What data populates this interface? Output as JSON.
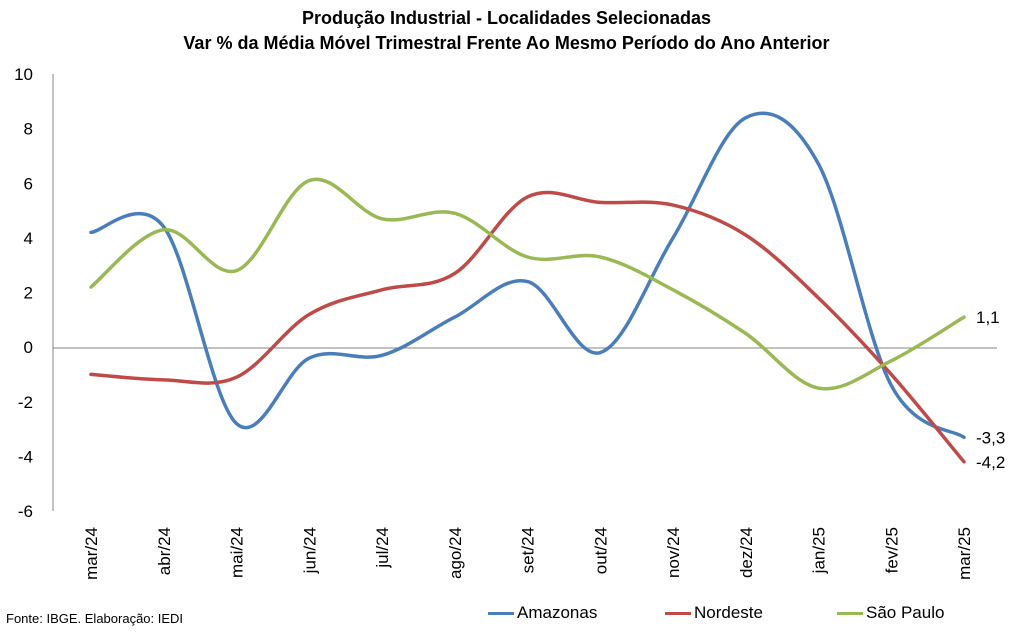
{
  "chart_data": {
    "type": "line",
    "title": "Produção Industrial - Localidades Selecionadas",
    "subtitle": "Var % da Média Móvel Trimestral Frente Ao Mesmo Período do Ano Anterior",
    "categories": [
      "mar/24",
      "abr/24",
      "mai/24",
      "jun/24",
      "jul/24",
      "ago/24",
      "set/24",
      "out/24",
      "nov/24",
      "dez/24",
      "jan/25",
      "fev/25",
      "mar/25"
    ],
    "ylim": [
      -6,
      10
    ],
    "yticks": [
      "10",
      "8",
      "6",
      "4",
      "2",
      "0",
      "-2",
      "-4",
      "-6"
    ],
    "ytick_values": [
      10,
      8,
      6,
      4,
      2,
      0,
      -2,
      -4,
      -6
    ],
    "series": [
      {
        "name": "Amazonas",
        "color": "#4a7ebb",
        "values": [
          4.2,
          4.4,
          -2.8,
          -0.4,
          -0.3,
          1.1,
          2.4,
          -0.2,
          4.0,
          8.4,
          6.7,
          -1.4,
          -3.3
        ],
        "end_label": "-3,3"
      },
      {
        "name": "Nordeste",
        "color": "#be4b48",
        "values": [
          -1.0,
          -1.2,
          -1.1,
          1.2,
          2.1,
          2.7,
          5.5,
          5.3,
          5.2,
          4.1,
          1.8,
          -1.0,
          -4.2
        ],
        "end_label": "-4,2"
      },
      {
        "name": "São Paulo",
        "color": "#98b954",
        "values": [
          2.2,
          4.3,
          2.8,
          6.1,
          4.7,
          4.9,
          3.3,
          3.3,
          2.1,
          0.5,
          -1.5,
          -0.5,
          1.1
        ],
        "end_label": "1,1"
      }
    ],
    "grid": false,
    "legend_position": "bottom-right"
  },
  "source": "Fonte: IBGE. Elaboração: IEDI"
}
